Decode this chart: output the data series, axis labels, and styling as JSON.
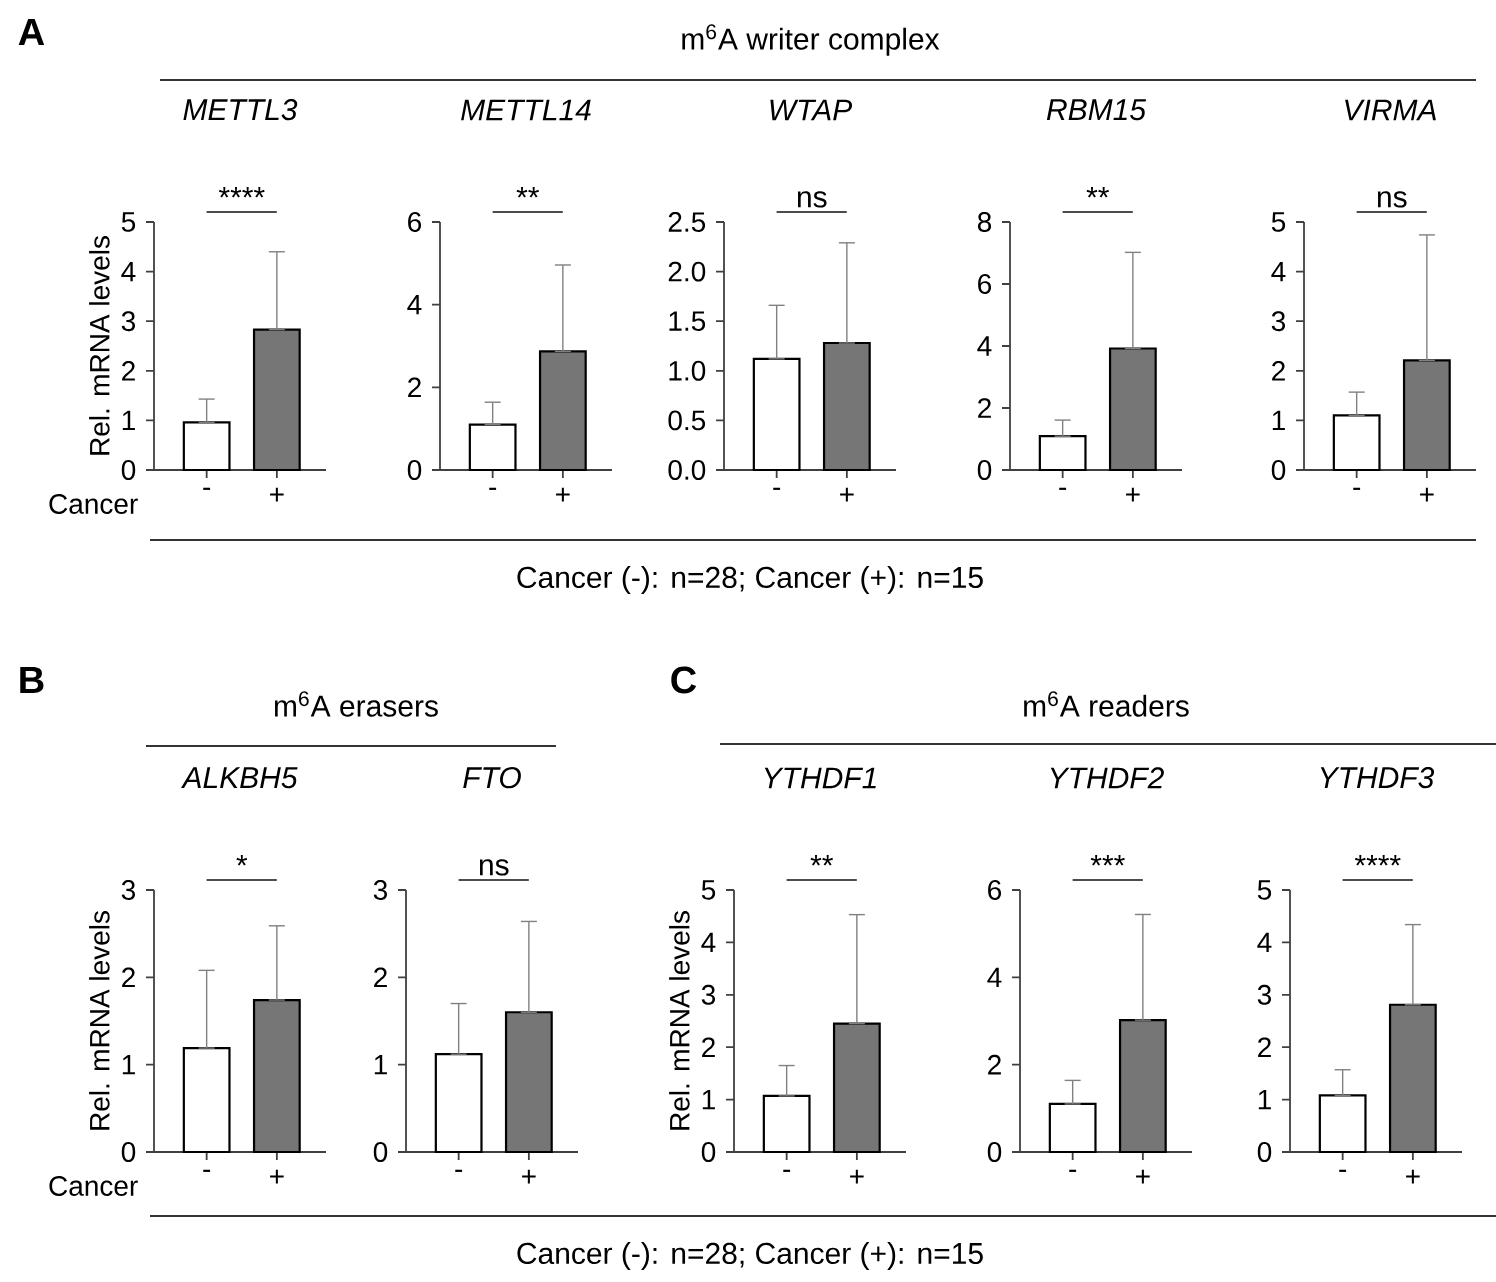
{
  "chart_data": [
    {
      "type": "bar",
      "title": "METTL3",
      "ylabel": "Rel. mRNA levels",
      "xlabel": "Cancer",
      "categories": [
        "-",
        "+"
      ],
      "values": [
        0.96,
        2.83
      ],
      "colors": [
        "#ffffff",
        "#767676"
      ],
      "errors": [
        [
          0.96,
          1.43
        ],
        [
          2.83,
          4.4
        ]
      ],
      "ylim": [
        0,
        5
      ],
      "yticks": [
        0,
        1,
        2,
        3,
        4,
        5
      ],
      "annotations": [
        "****",
        "A",
        "m$^{6}$A writer complex",
        "Cancer (-): n=28; Cancer (+): n=15"
      ]
    },
    {
      "type": "bar",
      "title": "METTL14",
      "categories": [
        "-",
        "+"
      ],
      "values": [
        1.1,
        2.87
      ],
      "colors": [
        "#ffffff",
        "#767676"
      ],
      "errors": [
        [
          1.1,
          1.64
        ],
        [
          2.87,
          4.96
        ]
      ],
      "ylim": [
        0,
        6
      ],
      "yticks": [
        0,
        2,
        4,
        6
      ],
      "annotations": [
        "**"
      ]
    },
    {
      "type": "bar",
      "title": "WTAP",
      "categories": [
        "-",
        "+"
      ],
      "values": [
        1.12,
        1.28
      ],
      "colors": [
        "#ffffff",
        "#767676"
      ],
      "errors": [
        [
          1.12,
          1.66
        ],
        [
          1.28,
          2.29
        ]
      ],
      "ylim": [
        0,
        2.5
      ],
      "yticks": [
        {
          "value": 0,
          "label": "0.0"
        },
        {
          "value": 0.5,
          "label": "0.5"
        },
        {
          "value": 1,
          "label": "1.0"
        },
        {
          "value": 1.5,
          "label": "1.5"
        },
        {
          "value": 2,
          "label": "2.0"
        },
        {
          "value": 2.5,
          "label": "2.5"
        }
      ],
      "annotations": [
        "ns"
      ]
    },
    {
      "type": "bar",
      "title": "RBM15",
      "categories": [
        "-",
        "+"
      ],
      "values": [
        1.09,
        3.92
      ],
      "colors": [
        "#ffffff",
        "#767676"
      ],
      "errors": [
        [
          1.09,
          1.61
        ],
        [
          3.92,
          7.02
        ]
      ],
      "ylim": [
        0,
        8
      ],
      "yticks": [
        0,
        2,
        4,
        6,
        8
      ],
      "annotations": [
        "**"
      ]
    },
    {
      "type": "bar",
      "title": "VIRMA",
      "categories": [
        "-",
        "+"
      ],
      "values": [
        1.1,
        2.21
      ],
      "colors": [
        "#ffffff",
        "#767676"
      ],
      "errors": [
        [
          1.1,
          1.57
        ],
        [
          2.21,
          4.74
        ]
      ],
      "ylim": [
        0,
        5
      ],
      "yticks": [
        0,
        1,
        2,
        3,
        4,
        5
      ],
      "annotations": [
        "ns"
      ]
    },
    {
      "type": "bar",
      "title": "ALKBH5",
      "ylabel": "Rel. mRNA levels",
      "xlabel": "Cancer",
      "categories": [
        "-",
        "+"
      ],
      "values": [
        1.19,
        1.74
      ],
      "colors": [
        "#ffffff",
        "#767676"
      ],
      "errors": [
        [
          1.19,
          2.08
        ],
        [
          1.74,
          2.59
        ]
      ],
      "ylim": [
        0,
        3
      ],
      "yticks": [
        0,
        1,
        2,
        3
      ],
      "annotations": [
        "*",
        "B",
        "m$^{6}$A erasers",
        "Cancer (-): n=28; Cancer (+): n=15"
      ]
    },
    {
      "type": "bar",
      "title": "FTO",
      "categories": [
        "-",
        "+"
      ],
      "values": [
        1.12,
        1.6
      ],
      "colors": [
        "#ffffff",
        "#767676"
      ],
      "errors": [
        [
          1.12,
          1.7
        ],
        [
          1.6,
          2.64
        ]
      ],
      "ylim": [
        0,
        3
      ],
      "yticks": [
        0,
        1,
        2,
        3
      ],
      "annotations": [
        "ns"
      ]
    },
    {
      "type": "bar",
      "title": "YTHDF1",
      "ylabel": "Rel. mRNA levels",
      "categories": [
        "-",
        "+"
      ],
      "values": [
        1.07,
        2.45
      ],
      "colors": [
        "#ffffff",
        "#767676"
      ],
      "errors": [
        [
          1.07,
          1.65
        ],
        [
          2.45,
          4.53
        ]
      ],
      "ylim": [
        0,
        5
      ],
      "yticks": [
        0,
        1,
        2,
        3,
        4,
        5
      ],
      "annotations": [
        "**",
        "C",
        "m$^{6}$A readers"
      ]
    },
    {
      "type": "bar",
      "title": "YTHDF2",
      "categories": [
        "-",
        "+"
      ],
      "values": [
        1.1,
        3.02
      ],
      "colors": [
        "#ffffff",
        "#767676"
      ],
      "errors": [
        [
          1.1,
          1.64
        ],
        [
          3.02,
          5.44
        ]
      ],
      "ylim": [
        0,
        6
      ],
      "yticks": [
        0,
        2,
        4,
        6
      ],
      "annotations": [
        "***"
      ]
    },
    {
      "type": "bar",
      "title": "YTHDF3",
      "categories": [
        "-",
        "+"
      ],
      "values": [
        1.08,
        2.81
      ],
      "colors": [
        "#ffffff",
        "#767676"
      ],
      "errors": [
        [
          1.08,
          1.57
        ],
        [
          2.81,
          4.34
        ]
      ],
      "ylim": [
        0,
        5
      ],
      "yticks": [
        0,
        1,
        2,
        3,
        4,
        5
      ],
      "annotations": [
        "****"
      ]
    }
  ]
}
